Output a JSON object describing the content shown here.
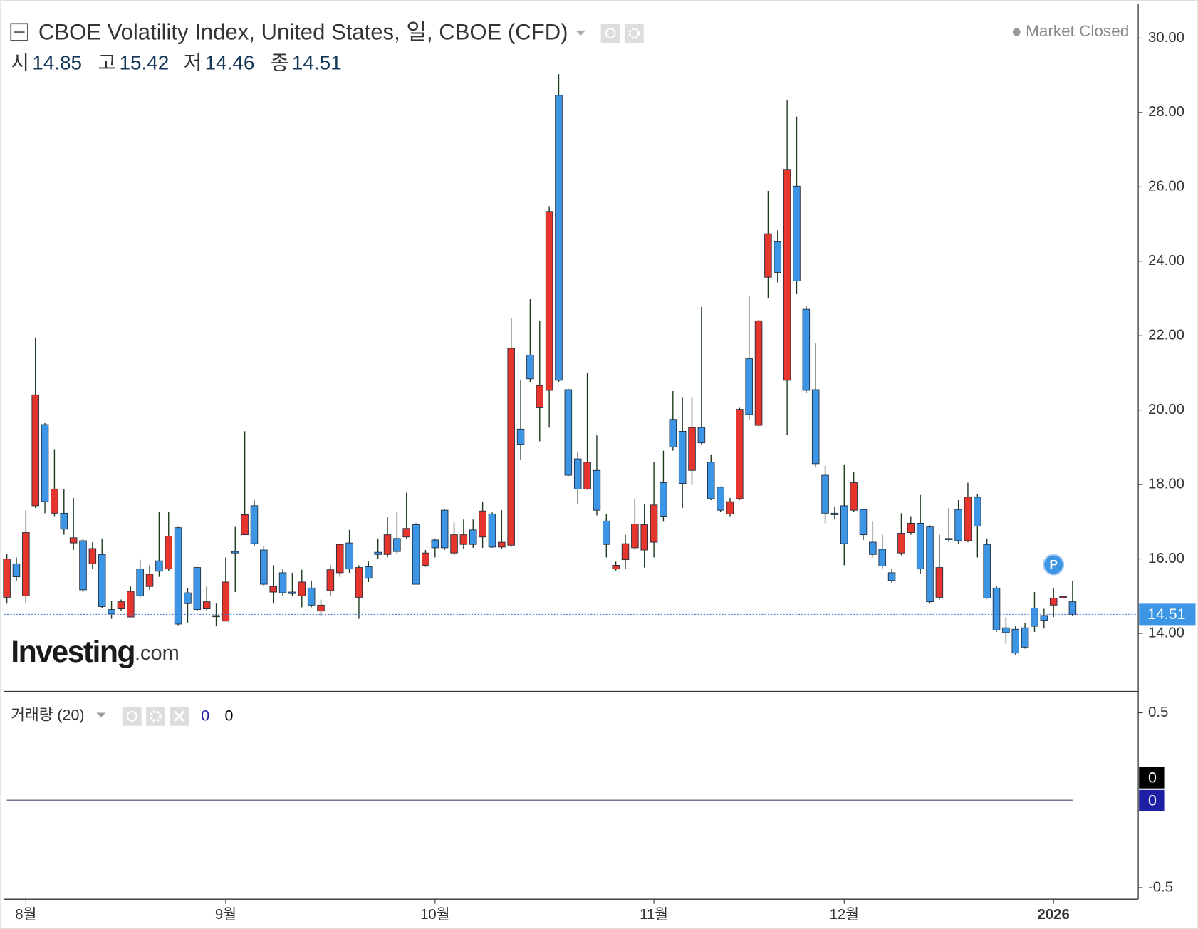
{
  "chart_data": [
    {
      "type": "candlestick",
      "title": "CBOE Volatility Index, United States, 일, CBOE (CFD)",
      "status": "Market Closed",
      "ohlc_labels": [
        "시",
        "고",
        "저",
        "종"
      ],
      "logo": {
        "main": "Investing",
        "suffix": ".com"
      },
      "marker": "P",
      "up_color": "#e5352d",
      "down_color": "#3d95e6",
      "wick_color": "#1d3a1d",
      "price_line_color": "#3f6fd8",
      "grid": false,
      "xlim": [
        -0.3,
        118.9
      ],
      "xticks": [
        {
          "value": 2,
          "label": "8월"
        },
        {
          "value": 23,
          "label": "9월"
        },
        {
          "value": 45,
          "label": "10월"
        },
        {
          "value": 68,
          "label": "11월"
        },
        {
          "value": 88,
          "label": "12월"
        },
        {
          "value": 110,
          "label": "2026"
        }
      ],
      "ylim": [
        12.44,
        30.92
      ],
      "yticks": [
        {
          "value": 14,
          "label": "14.00"
        },
        {
          "value": 16,
          "label": "16.00"
        },
        {
          "value": 18,
          "label": "18.00"
        },
        {
          "value": 20,
          "label": "20.00"
        },
        {
          "value": 22,
          "label": "22.00"
        },
        {
          "value": 24,
          "label": "24.00"
        },
        {
          "value": 26,
          "label": "26.00"
        },
        {
          "value": 28,
          "label": "28.00"
        },
        {
          "value": 30,
          "label": "30.00"
        }
      ],
      "open": [
        14.97,
        15.87,
        15.01,
        17.43,
        19.61,
        17.23,
        17.23,
        16.43,
        16.49,
        15.87,
        16.12,
        14.64,
        14.66,
        14.44,
        15.73,
        15.26,
        15.95,
        15.73,
        16.84,
        15.09,
        15.77,
        14.66,
        14.48,
        14.33,
        16.2,
        16.65,
        17.43,
        16.24,
        15.11,
        15.63,
        15.11,
        15.01,
        15.22,
        14.6,
        15.15,
        15.63,
        16.43,
        14.97,
        15.79,
        16.18,
        16.12,
        16.55,
        16.59,
        16.92,
        15.83,
        16.51,
        17.31,
        16.16,
        16.39,
        16.78,
        16.59,
        17.21,
        16.32,
        16.37,
        19.49,
        21.48,
        20.08,
        20.53,
        28.46,
        20.55,
        18.69,
        17.88,
        18.38,
        17.02,
        15.73,
        15.98,
        16.3,
        16.24,
        16.45,
        18.05,
        19.75,
        19.43,
        18.38,
        19.53,
        18.6,
        17.93,
        17.21,
        17.62,
        21.38,
        19.59,
        23.57,
        24.54,
        20.8,
        26.02,
        22.71,
        20.55,
        18.25,
        17.23,
        17.43,
        17.31,
        17.33,
        16.45,
        16.26,
        15.63,
        16.16,
        16.71,
        16.96,
        16.86,
        14.97,
        16.55,
        17.33,
        16.49,
        17.66,
        16.39,
        15.22,
        14.15,
        14.11,
        14.15,
        14.68,
        14.48,
        14.76,
        14.97,
        14.85
      ],
      "high": [
        16.14,
        16.04,
        17.31,
        21.95,
        19.65,
        18.95,
        17.88,
        17.64,
        16.55,
        16.45,
        16.55,
        14.87,
        14.91,
        15.26,
        15.98,
        15.83,
        17.27,
        17.27,
        16.86,
        15.22,
        15.79,
        15.26,
        14.8,
        16.04,
        16.86,
        19.43,
        17.58,
        16.35,
        15.83,
        15.73,
        15.63,
        15.71,
        15.42,
        14.91,
        15.83,
        16.39,
        16.78,
        15.83,
        15.93,
        16.55,
        17.13,
        17.27,
        17.78,
        16.96,
        16.24,
        16.55,
        17.33,
        16.98,
        17.06,
        17.06,
        17.54,
        17.25,
        17.31,
        22.48,
        20.82,
        22.98,
        22.4,
        25.48,
        29.03,
        20.57,
        18.87,
        21.01,
        19.32,
        17.21,
        15.93,
        16.65,
        17.6,
        17.47,
        18.6,
        18.91,
        20.51,
        20.35,
        20.35,
        22.77,
        18.81,
        17.95,
        17.64,
        20.08,
        23.06,
        22.42,
        25.89,
        24.83,
        28.32,
        27.89,
        22.79,
        21.79,
        18.5,
        17.41,
        18.54,
        18.34,
        17.35,
        17.0,
        16.65,
        15.73,
        17.23,
        17.15,
        17.72,
        16.9,
        16.65,
        17.37,
        17.58,
        18.05,
        17.74,
        16.55,
        15.28,
        14.44,
        14.19,
        14.29,
        15.11,
        14.66,
        15.22,
        14.99,
        15.42
      ],
      "low": [
        14.8,
        15.42,
        14.8,
        17.37,
        17.23,
        17.15,
        16.65,
        16.24,
        15.11,
        15.73,
        14.68,
        14.39,
        14.6,
        14.44,
        14.97,
        15.17,
        15.52,
        15.67,
        14.22,
        14.29,
        14.6,
        14.6,
        14.19,
        14.33,
        15.11,
        16.65,
        16.35,
        15.26,
        14.8,
        15.01,
        15.01,
        14.7,
        14.7,
        14.48,
        15.01,
        15.52,
        15.63,
        14.39,
        15.38,
        16.0,
        16.04,
        16.14,
        16.55,
        15.32,
        15.79,
        16.04,
        16.24,
        16.1,
        16.28,
        16.3,
        16.3,
        16.3,
        16.28,
        16.32,
        18.67,
        20.76,
        19.16,
        19.53,
        20.76,
        18.23,
        17.47,
        17.86,
        17.17,
        16.04,
        15.69,
        15.73,
        16.24,
        15.77,
        16.04,
        17.0,
        18.91,
        17.37,
        17.99,
        19.08,
        17.58,
        17.27,
        17.15,
        17.58,
        19.73,
        19.57,
        23.02,
        23.43,
        19.32,
        23.12,
        20.45,
        18.46,
        16.96,
        17.06,
        15.83,
        17.27,
        16.51,
        16.04,
        15.75,
        15.36,
        16.1,
        16.65,
        15.59,
        14.8,
        14.91,
        16.45,
        16.41,
        16.45,
        16.04,
        14.93,
        14.04,
        13.72,
        13.43,
        13.59,
        14.04,
        14.13,
        14.44,
        14.97,
        14.46
      ],
      "close": [
        16.0,
        15.52,
        16.71,
        20.41,
        17.54,
        17.88,
        16.8,
        16.57,
        15.17,
        16.28,
        14.72,
        14.52,
        14.85,
        15.13,
        15.01,
        15.59,
        15.67,
        16.61,
        14.25,
        14.8,
        14.64,
        14.85,
        14.48,
        15.38,
        16.16,
        17.19,
        16.41,
        15.32,
        15.26,
        15.09,
        15.07,
        15.38,
        14.76,
        14.76,
        15.71,
        16.39,
        15.73,
        15.77,
        15.48,
        16.12,
        16.65,
        16.2,
        16.82,
        15.32,
        16.16,
        16.3,
        16.3,
        16.65,
        16.65,
        16.39,
        17.29,
        16.32,
        16.45,
        21.66,
        19.08,
        20.84,
        20.66,
        25.34,
        20.8,
        18.25,
        17.88,
        18.6,
        17.31,
        16.39,
        15.83,
        16.41,
        16.94,
        16.92,
        17.45,
        17.15,
        19.01,
        18.03,
        19.53,
        19.12,
        17.62,
        17.31,
        17.54,
        20.02,
        19.88,
        22.4,
        24.74,
        23.7,
        26.47,
        23.47,
        20.53,
        18.56,
        17.23,
        17.19,
        16.41,
        18.05,
        16.65,
        16.12,
        15.81,
        15.42,
        16.69,
        16.96,
        15.73,
        14.85,
        15.77,
        16.53,
        16.49,
        17.66,
        16.88,
        14.95,
        14.09,
        14.02,
        13.47,
        13.63,
        14.19,
        14.35,
        14.95,
        14.99,
        14.51
      ]
    },
    {
      "type": "line",
      "title": "거래량 (20)",
      "ylim": [
        -0.566,
        0.618
      ],
      "yticks": [
        -0.5,
        0.5
      ],
      "series": [
        {
          "color": "#1f1fa6",
          "values": [
            0,
            0,
            0,
            0,
            0,
            0,
            0,
            0,
            0,
            0,
            0,
            0,
            0,
            0,
            0,
            0,
            0,
            0,
            0,
            0,
            0,
            0,
            0,
            0,
            0,
            0,
            0,
            0,
            0,
            0,
            0,
            0,
            0,
            0,
            0,
            0,
            0,
            0,
            0,
            0,
            0,
            0,
            0,
            0,
            0,
            0,
            0,
            0,
            0,
            0,
            0,
            0,
            0,
            0,
            0,
            0,
            0,
            0,
            0,
            0,
            0,
            0,
            0,
            0,
            0,
            0,
            0,
            0,
            0,
            0,
            0,
            0,
            0,
            0,
            0,
            0,
            0,
            0,
            0,
            0,
            0,
            0,
            0,
            0,
            0,
            0,
            0,
            0,
            0,
            0,
            0,
            0,
            0,
            0,
            0,
            0,
            0,
            0,
            0,
            0,
            0,
            0,
            0,
            0,
            0,
            0,
            0,
            0,
            0,
            0,
            0,
            0,
            0
          ]
        },
        {
          "color": "#000000",
          "values": [
            0,
            0,
            0,
            0,
            0,
            0,
            0,
            0,
            0,
            0,
            0,
            0,
            0,
            0,
            0,
            0,
            0,
            0,
            0,
            0,
            0,
            0,
            0,
            0,
            0,
            0,
            0,
            0,
            0,
            0,
            0,
            0,
            0,
            0,
            0,
            0,
            0,
            0,
            0,
            0,
            0,
            0,
            0,
            0,
            0,
            0,
            0,
            0,
            0,
            0,
            0,
            0,
            0,
            0,
            0,
            0,
            0,
            0,
            0,
            0,
            0,
            0,
            0,
            0,
            0,
            0,
            0,
            0,
            0,
            0,
            0,
            0,
            0,
            0,
            0,
            0,
            0,
            0,
            0,
            0,
            0,
            0,
            0,
            0,
            0,
            0,
            0,
            0,
            0,
            0,
            0,
            0,
            0,
            0,
            0,
            0,
            0,
            0,
            0,
            0,
            0,
            0,
            0,
            0,
            0,
            0,
            0,
            0,
            0,
            0,
            0,
            0,
            0
          ]
        }
      ]
    }
  ]
}
